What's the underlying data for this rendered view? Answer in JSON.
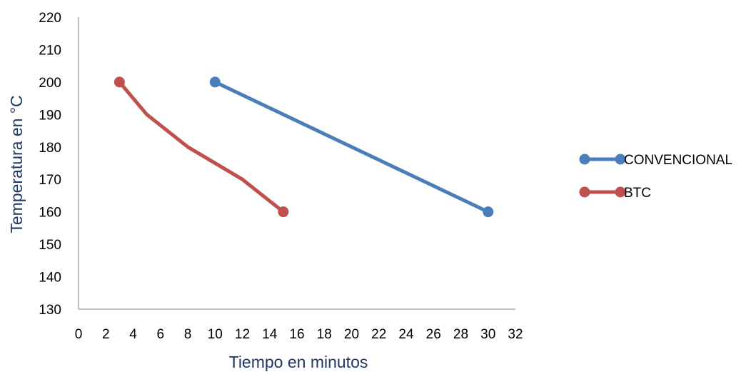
{
  "chart_data": {
    "type": "line",
    "title": "",
    "xlabel": "Tiempo en minutos",
    "ylabel": "Temperatura en °C",
    "xlim": [
      0,
      32
    ],
    "ylim": [
      130,
      220
    ],
    "x_ticks": [
      "0",
      "2",
      "4",
      "6",
      "8",
      "10",
      "12",
      "14",
      "16",
      "18",
      "20",
      "22",
      "24",
      "26",
      "28",
      "30",
      "32"
    ],
    "y_ticks": [
      "130",
      "140",
      "150",
      "160",
      "170",
      "180",
      "190",
      "200",
      "210",
      "220"
    ],
    "grid": false,
    "legend_position": "right",
    "series": [
      {
        "name": "CONVENCIONAL",
        "color": "#4a7ebb",
        "points": [
          {
            "x": 10,
            "y": 200
          },
          {
            "x": 30,
            "y": 160
          }
        ],
        "markers": [
          0,
          1
        ]
      },
      {
        "name": "BTC",
        "color": "#c0504d",
        "points": [
          {
            "x": 3,
            "y": 200
          },
          {
            "x": 5,
            "y": 190
          },
          {
            "x": 8,
            "y": 180
          },
          {
            "x": 12,
            "y": 170
          },
          {
            "x": 15,
            "y": 160
          }
        ],
        "markers": [
          0,
          4
        ]
      }
    ]
  }
}
